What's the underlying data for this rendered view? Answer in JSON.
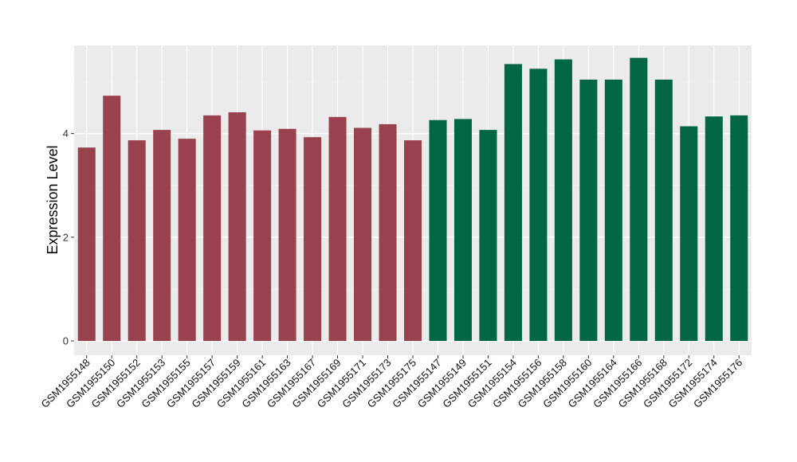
{
  "chart_data": {
    "type": "bar",
    "title": "",
    "xlabel": "",
    "ylabel": "Expression Level",
    "ylim": [
      0,
      5.7
    ],
    "yticks": [
      0,
      2,
      4
    ],
    "grid": true,
    "legend": "none",
    "colors": {
      "panel_bg": "#ebebeb",
      "grid_major": "#ffffff",
      "group_a": "#9a4150",
      "group_b": "#006644",
      "text": "#333333",
      "axis_title": "#000000"
    },
    "categories": [
      "GSM1955148",
      "GSM1955150",
      "GSM1955152",
      "GSM1955153",
      "GSM1955155",
      "GSM1955157",
      "GSM1955159",
      "GSM1955161",
      "GSM1955163",
      "GSM1955167",
      "GSM1955169",
      "GSM1955171",
      "GSM1955173",
      "GSM1955175",
      "GSM1955147",
      "GSM1955149",
      "GSM1955151",
      "GSM1955154",
      "GSM1955156",
      "GSM1955158",
      "GSM1955160",
      "GSM1955164",
      "GSM1955166",
      "GSM1955168",
      "GSM1955172",
      "GSM1955174",
      "GSM1955176"
    ],
    "values": [
      3.73,
      4.73,
      3.87,
      4.07,
      3.9,
      4.35,
      4.41,
      4.06,
      4.09,
      3.93,
      4.32,
      4.11,
      4.18,
      3.87,
      4.26,
      4.28,
      4.07,
      5.34,
      5.25,
      5.43,
      5.04,
      5.04,
      5.46,
      5.04,
      4.14,
      4.33,
      4.35
    ],
    "group": [
      "a",
      "a",
      "a",
      "a",
      "a",
      "a",
      "a",
      "a",
      "a",
      "a",
      "a",
      "a",
      "a",
      "a",
      "b",
      "b",
      "b",
      "b",
      "b",
      "b",
      "b",
      "b",
      "b",
      "b",
      "b",
      "b",
      "b"
    ]
  }
}
